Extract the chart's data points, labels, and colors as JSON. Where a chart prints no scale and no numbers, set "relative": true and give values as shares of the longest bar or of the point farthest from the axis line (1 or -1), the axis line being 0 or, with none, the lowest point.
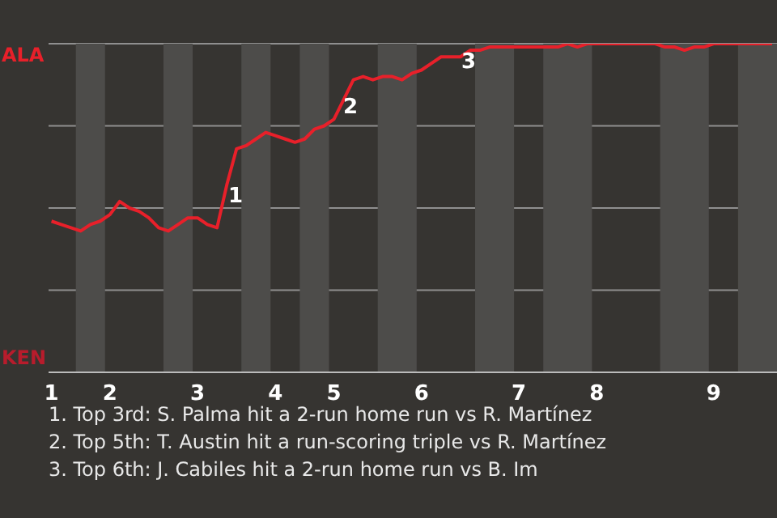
{
  "chart_data": {
    "type": "line",
    "relative": true,
    "categories": [
      "1",
      null,
      null,
      null,
      null,
      null,
      "2",
      null,
      null,
      null,
      null,
      null,
      null,
      null,
      null,
      "3",
      null,
      null,
      null,
      null,
      null,
      null,
      null,
      "4",
      null,
      null,
      null,
      null,
      null,
      "5",
      null,
      null,
      null,
      null,
      null,
      null,
      null,
      null,
      "6",
      null,
      null,
      null,
      null,
      null,
      null,
      null,
      null,
      null,
      "7",
      null,
      null,
      null,
      null,
      null,
      null,
      null,
      "8",
      null,
      null,
      null,
      null,
      null,
      null,
      null,
      null,
      null,
      null,
      null,
      "9",
      null,
      null,
      null,
      null,
      null,
      null
    ],
    "series": [
      {
        "color": "#e8202a",
        "values": [
          0.46,
          0.45,
          0.44,
          0.43,
          0.45,
          0.46,
          0.48,
          0.52,
          0.5,
          0.49,
          0.47,
          0.44,
          0.43,
          0.45,
          0.47,
          0.47,
          0.45,
          0.44,
          0.57,
          0.68,
          0.69,
          0.71,
          0.73,
          0.72,
          0.71,
          0.7,
          0.71,
          0.74,
          0.75,
          0.77,
          0.83,
          0.89,
          0.9,
          0.89,
          0.9,
          0.9,
          0.89,
          0.91,
          0.92,
          0.94,
          0.96,
          0.96,
          0.96,
          0.98,
          0.98,
          0.99,
          0.99,
          0.99,
          0.99,
          0.99,
          0.99,
          0.99,
          0.99,
          1,
          0.99,
          1,
          1,
          1,
          1,
          1,
          1,
          1,
          1,
          0.99,
          0.99,
          0.98,
          0.99,
          0.99,
          1,
          1,
          1,
          1,
          1,
          1,
          1
        ]
      }
    ],
    "grid": "y",
    "marker": "none",
    "line_style": "solid",
    "annotations": [
      "ALA",
      "KEN",
      "1",
      "2",
      "3",
      "1. Top 3rd: S. Palma hit a 2-run home run vs R. Martínez",
      "2. Top 5th: T. Austin hit a run-scoring triple vs R. Martínez",
      "3. Top 6th: J. Cabiles hit a 2-run home run vs B. Im"
    ]
  }
}
